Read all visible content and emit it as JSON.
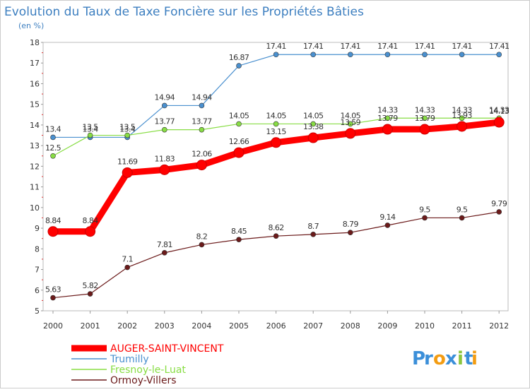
{
  "chart_data": {
    "type": "line",
    "title": "Evolution du Taux de Taxe Foncière sur les Propriétés Bâties",
    "subtitle": "(en %)",
    "xlabel": "",
    "ylabel": "",
    "categories": [
      "2000",
      "2001",
      "2002",
      "2003",
      "2004",
      "2005",
      "2006",
      "2007",
      "2008",
      "2009",
      "2010",
      "2011",
      "2012"
    ],
    "ylim": [
      5,
      18
    ],
    "yticks": [
      "5",
      "6",
      "7",
      "8",
      "9",
      "10",
      "11",
      "12",
      "13",
      "14",
      "15",
      "16",
      "17",
      "18"
    ],
    "grid": false,
    "legend_position": "bottom-left",
    "series": [
      {
        "name": "AUGER-SAINT-VINCENT",
        "color": "#ff0000",
        "values": [
          8.84,
          8.84,
          11.69,
          11.83,
          12.06,
          12.66,
          13.15,
          13.38,
          13.59,
          13.79,
          13.79,
          13.93,
          14.13
        ],
        "labels": [
          "8.84",
          "8.84",
          "11.69",
          "11.83",
          "12.06",
          "12.66",
          "13.15",
          "13.38",
          "13.59",
          "13.79",
          "13.79",
          "13.93",
          "14.13"
        ]
      },
      {
        "name": "Trumilly",
        "color": "#4a90cf",
        "values": [
          13.4,
          13.4,
          13.4,
          14.94,
          14.94,
          16.87,
          17.41,
          17.41,
          17.41,
          17.41,
          17.41,
          17.41,
          17.41
        ],
        "labels": [
          "13.4",
          "13.4",
          "13.4",
          "14.94",
          "14.94",
          "16.87",
          "17.41",
          "17.41",
          "17.41",
          "17.41",
          "17.41",
          "17.41",
          "17.41"
        ]
      },
      {
        "name": "Fresnoy-le-Luat",
        "color": "#88dd44",
        "values": [
          12.5,
          13.5,
          13.5,
          13.77,
          13.77,
          14.05,
          14.05,
          14.05,
          14.05,
          14.33,
          14.33,
          14.33,
          14.33
        ],
        "labels": [
          "12.5",
          "13.5",
          "13.5",
          "13.77",
          "13.77",
          "14.05",
          "14.05",
          "14.05",
          "14.05",
          "14.33",
          "14.33",
          "14.33",
          "14.33"
        ]
      },
      {
        "name": "Ormoy-Villers",
        "color": "#6b1a1a",
        "values": [
          5.63,
          5.82,
          7.1,
          7.81,
          8.2,
          8.45,
          8.62,
          8.7,
          8.79,
          9.14,
          9.5,
          9.5,
          9.79
        ],
        "labels": [
          "5.63",
          "5.82",
          "7.1",
          "7.81",
          "8.2",
          "8.45",
          "8.62",
          "8.7",
          "8.79",
          "9.14",
          "9.5",
          "9.5",
          "9.79"
        ]
      }
    ]
  },
  "legend": {
    "items": [
      "AUGER-SAINT-VINCENT",
      "Trumilly",
      "Fresnoy-le-Luat",
      "Ormoy-Villers"
    ]
  },
  "brand": {
    "letters": [
      "P",
      "r",
      "o",
      "x",
      "i",
      "t",
      "i"
    ],
    "colors": [
      "#3b8fd9",
      "#3b8fd9",
      "#f39c12",
      "#3b8fd9",
      "#8cc63f",
      "#3b8fd9",
      "#f39c12"
    ]
  }
}
